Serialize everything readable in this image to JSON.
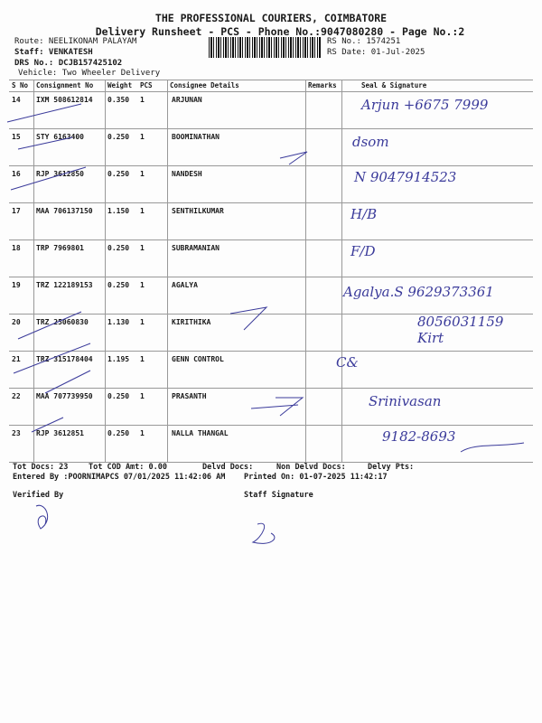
{
  "header": {
    "company": "THE PROFESSIONAL COURIERS, COIMBATORE",
    "subtitle": "Delivery Runsheet - PCS - Phone No.:9047080280 - Page No.:2",
    "route": "Route: NEELIKONAM PALAYAM",
    "staff": "Staff: VENKATESH",
    "drs": "DRS No.: DCJB157425102",
    "vehicle": "Vehicle: Two Wheeler Delivery",
    "rs_no": "RS No.: 1574251",
    "rs_date": "RS Date: 01-Jul-2025"
  },
  "table": {
    "columns": [
      "S No",
      "Consignment No",
      "Weight",
      "PCS",
      "Consignee Details",
      "Remarks",
      "Seal & Signature"
    ],
    "rows": [
      {
        "sno": "14",
        "cn": "IXM 508612814",
        "weight": "0.350",
        "pcs": "1",
        "consignee": "ARJUNAN",
        "sig": "Arjun +6675 7999"
      },
      {
        "sno": "15",
        "cn": "STY 6163400",
        "weight": "0.250",
        "pcs": "1",
        "consignee": "BOOMINATHAN",
        "sig": "dsom"
      },
      {
        "sno": "16",
        "cn": "RJP 3612850",
        "weight": "0.250",
        "pcs": "1",
        "consignee": "NANDESH",
        "sig": "N 9047914523"
      },
      {
        "sno": "17",
        "cn": "MAA 706137150",
        "weight": "1.150",
        "pcs": "1",
        "consignee": "SENTHILKUMAR",
        "sig": "H/B"
      },
      {
        "sno": "18",
        "cn": "TRP 7969801",
        "weight": "0.250",
        "pcs": "1",
        "consignee": "SUBRAMANIAN",
        "sig": "F/D"
      },
      {
        "sno": "19",
        "cn": "TRZ 122189153",
        "weight": "0.250",
        "pcs": "1",
        "consignee": "AGALYA",
        "sig": "Agalya.S 9629373361"
      },
      {
        "sno": "20",
        "cn": "TRZ 25060830",
        "weight": "1.130",
        "pcs": "1",
        "consignee": "KIRITHIKA",
        "sig": "8056031159 Kirt"
      },
      {
        "sno": "21",
        "cn": "TRZ 315178404",
        "weight": "1.195",
        "pcs": "1",
        "consignee": "GENN CONTROL",
        "sig": "C&"
      },
      {
        "sno": "22",
        "cn": "MAA 707739950",
        "weight": "0.250",
        "pcs": "1",
        "consignee": "PRASANTH",
        "sig": "Srinivasan"
      },
      {
        "sno": "23",
        "cn": "RJP 3612851",
        "weight": "0.250",
        "pcs": "1",
        "consignee": "NALLA THANGAL",
        "sig": "9182-8693"
      }
    ]
  },
  "footer": {
    "tot_docs": "Tot Docs:  23",
    "tot_cod": "Tot COD Amt:    0.00",
    "delvd": "Delvd Docs:",
    "non_delvd": "Non Delvd Docs:",
    "delvy_pts": "Delvy Pts:",
    "entered_by": "Entered By :POORNIMAPCS 07/01/2025 11:42:06 AM",
    "printed_on": "Printed On: 01-07-2025 11:42:17",
    "verified_by": "Verified By",
    "staff_signature": "Staff Signature"
  },
  "colors": {
    "ink": "#3a3a9a",
    "rule": "#999999"
  }
}
